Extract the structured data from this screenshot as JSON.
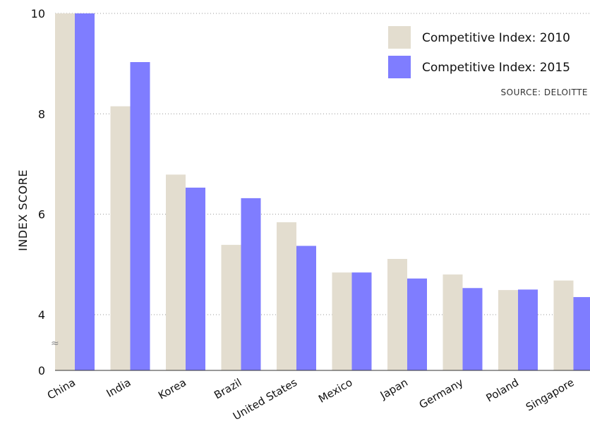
{
  "chart_data": {
    "type": "bar",
    "ylabel": "INDEX SCORE",
    "source": "SOURCE: DELOITTE",
    "categories": [
      "China",
      "India",
      "Korea",
      "Brazil",
      "United States",
      "Mexico",
      "Japan",
      "Germany",
      "Poland",
      "Singapore"
    ],
    "series": [
      {
        "name": "Competitive Index: 2010",
        "color": "#e3ddcf",
        "values": [
          10.0,
          8.15,
          6.79,
          5.39,
          5.84,
          4.84,
          5.11,
          4.8,
          4.49,
          4.68
        ]
      },
      {
        "name": "Competitive Index: 2015",
        "color": "#7f7dff",
        "values": [
          10.0,
          9.03,
          6.53,
          6.32,
          5.37,
          4.84,
          4.72,
          4.53,
          4.5,
          4.35
        ]
      }
    ],
    "yticks": [
      "0",
      "4",
      "6",
      "8",
      "10"
    ],
    "ylim": [
      0,
      10
    ],
    "axis_break": true,
    "grid": true,
    "legend_position": "top-right"
  }
}
